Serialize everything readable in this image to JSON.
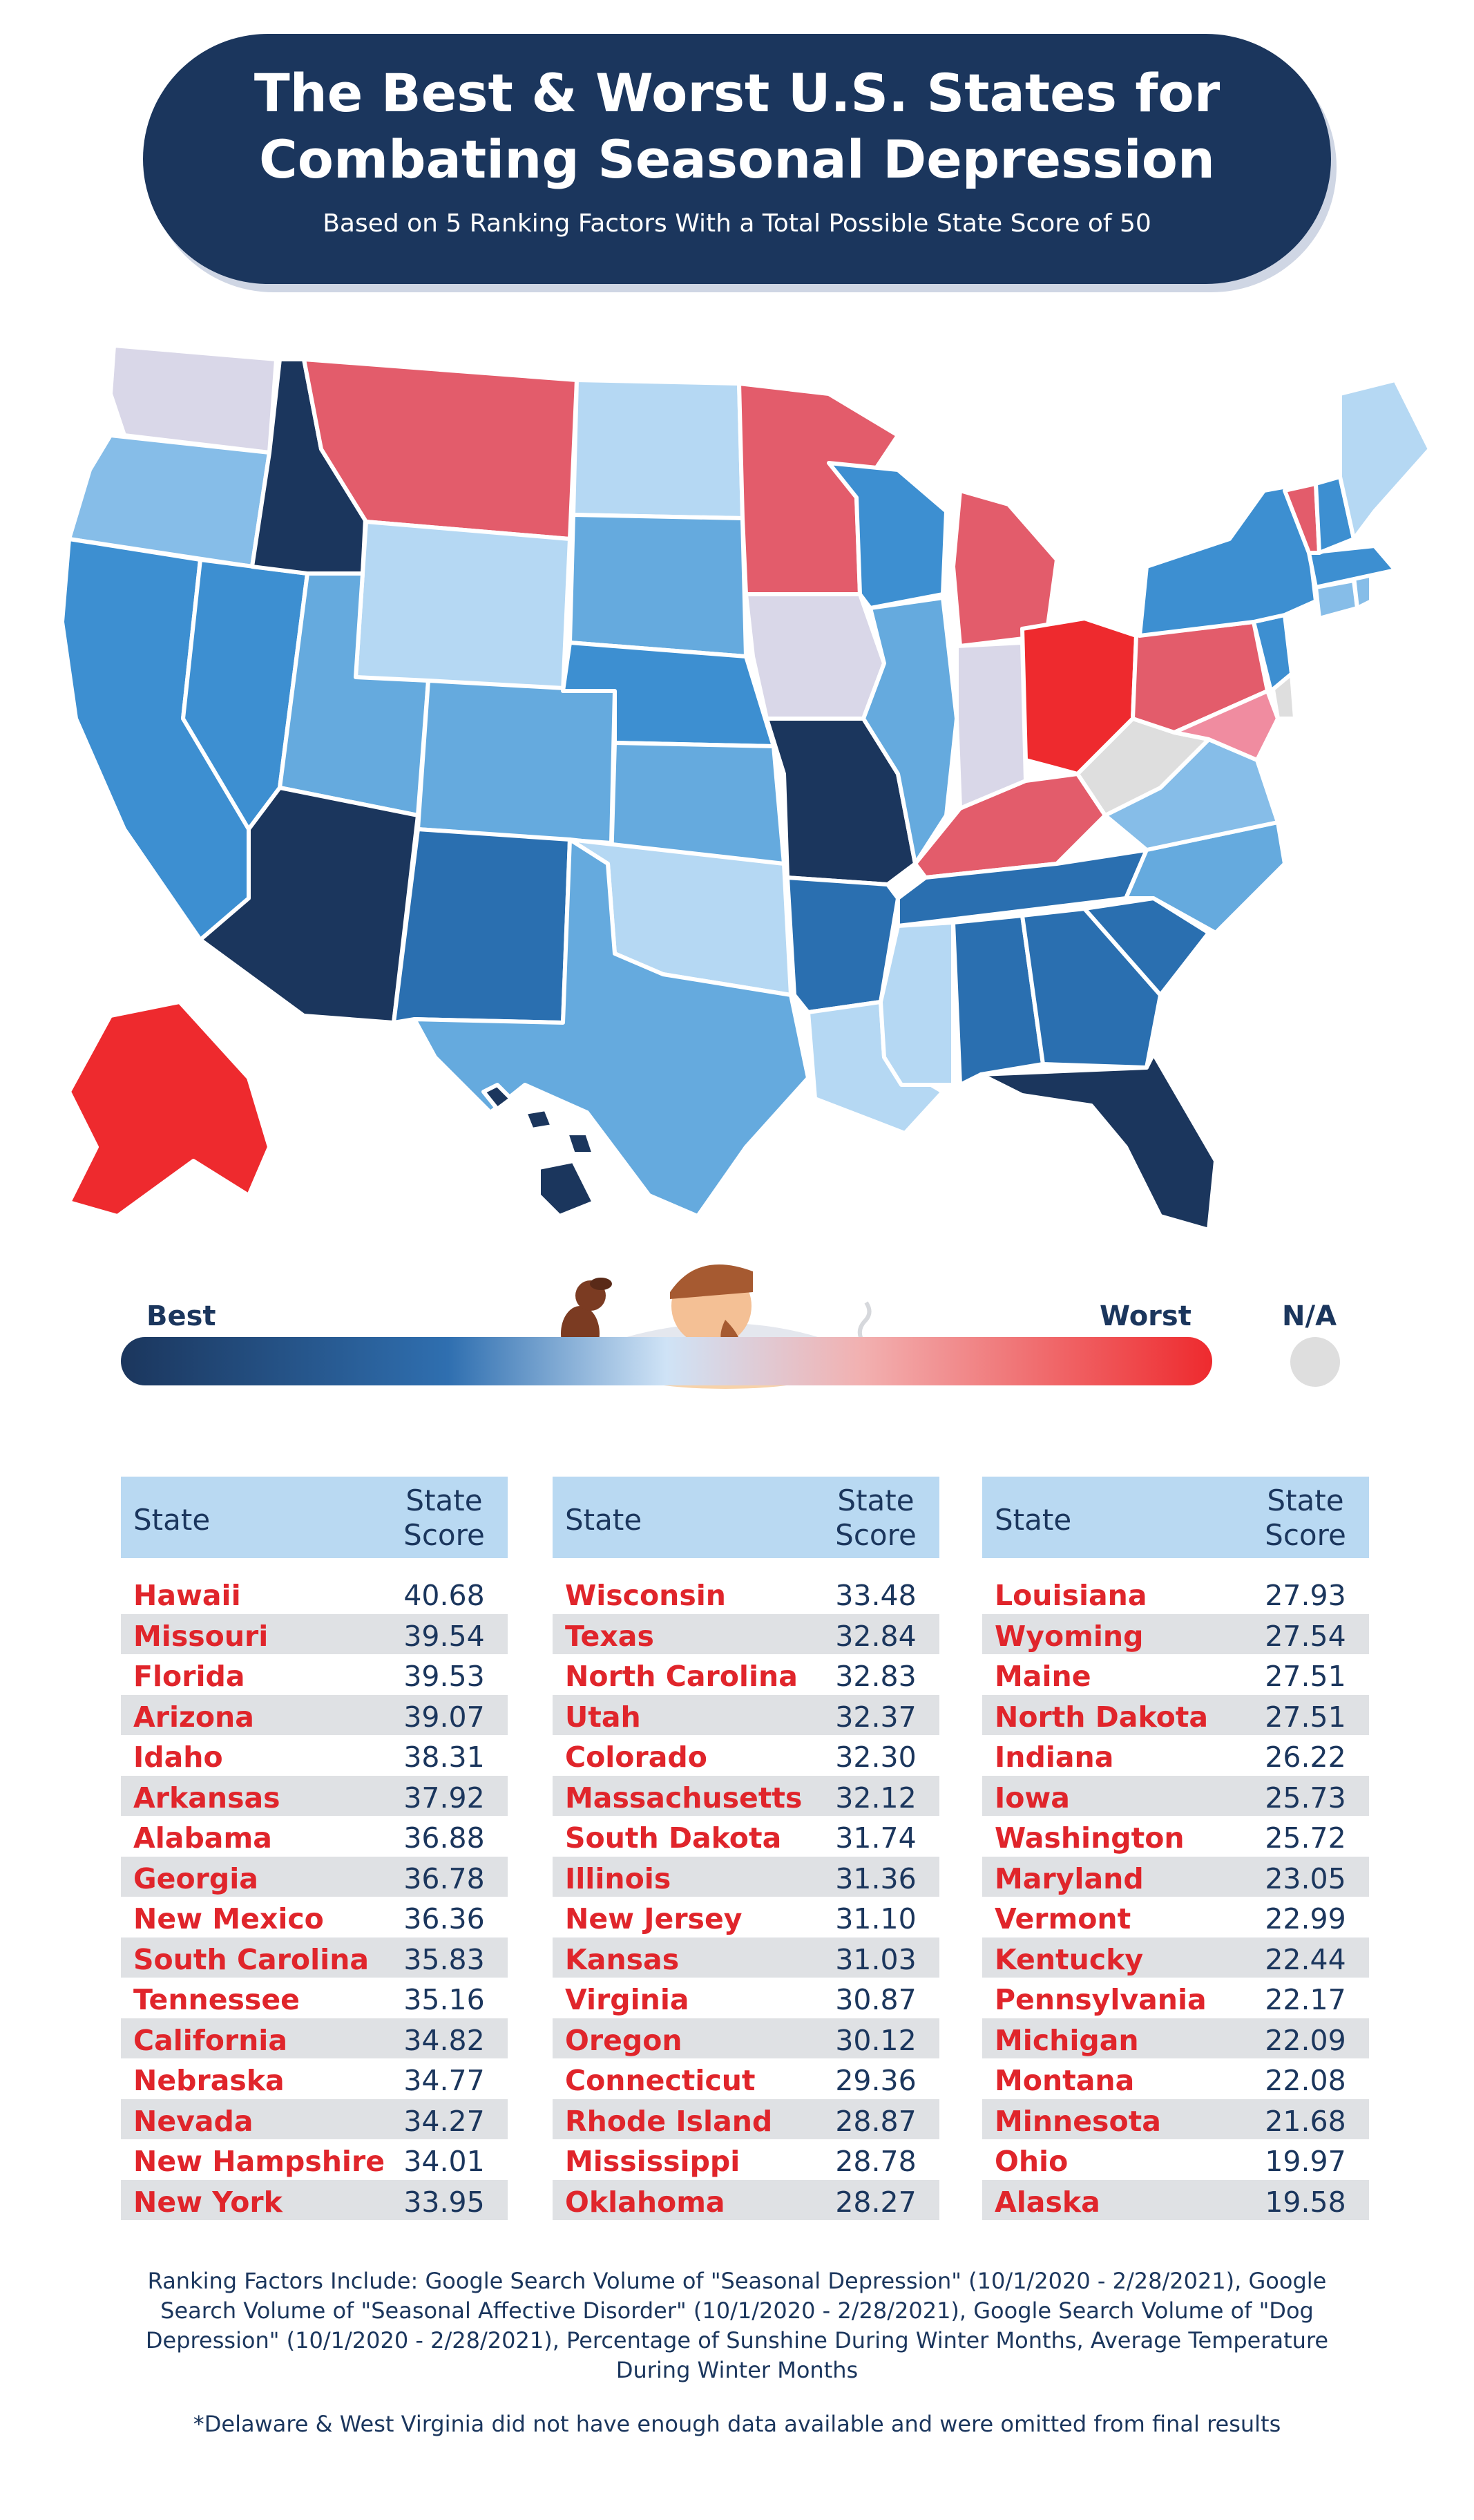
{
  "title": {
    "line1": "The Best & Worst U.S. States for",
    "line2": "Combating Seasonal Depression",
    "subtitle": "Based on 5 Ranking Factors With a Total Possible State Score of 50"
  },
  "colors": {
    "navy": "#1b365d",
    "blue_dark": "#2a6fb0",
    "blue_mid": "#3d8fd1",
    "blue_light": "#65aade",
    "blue_pale": "#86bde8",
    "blue_faint": "#b5d8f3",
    "lavender": "#d9d7e8",
    "red_light": "#e35c6b",
    "red": "#ee2a2e",
    "pink": "#f08ca0",
    "gray_na": "#dedede"
  },
  "legend": {
    "best_label": "Best",
    "worst_label": "Worst",
    "na_label": "N/A"
  },
  "tables": [
    {
      "header_state": "State",
      "header_score_1": "State",
      "header_score_2": "Score",
      "rows": [
        {
          "state": "Hawaii",
          "score": "40.68"
        },
        {
          "state": "Missouri",
          "score": "39.54"
        },
        {
          "state": "Florida",
          "score": "39.53"
        },
        {
          "state": "Arizona",
          "score": "39.07"
        },
        {
          "state": "Idaho",
          "score": "38.31"
        },
        {
          "state": "Arkansas",
          "score": "37.92"
        },
        {
          "state": "Alabama",
          "score": "36.88"
        },
        {
          "state": "Georgia",
          "score": "36.78"
        },
        {
          "state": "New Mexico",
          "score": "36.36"
        },
        {
          "state": "South Carolina",
          "score": "35.83"
        },
        {
          "state": "Tennessee",
          "score": "35.16"
        },
        {
          "state": "California",
          "score": "34.82"
        },
        {
          "state": "Nebraska",
          "score": "34.77"
        },
        {
          "state": "Nevada",
          "score": "34.27"
        },
        {
          "state": "New Hampshire",
          "score": "34.01"
        },
        {
          "state": "New York",
          "score": "33.95"
        }
      ]
    },
    {
      "header_state": "State",
      "header_score_1": "State",
      "header_score_2": "Score",
      "rows": [
        {
          "state": "Wisconsin",
          "score": "33.48"
        },
        {
          "state": "Texas",
          "score": "32.84"
        },
        {
          "state": "North Carolina",
          "score": "32.83"
        },
        {
          "state": "Utah",
          "score": "32.37"
        },
        {
          "state": "Colorado",
          "score": "32.30"
        },
        {
          "state": "Massachusetts",
          "score": "32.12"
        },
        {
          "state": "South Dakota",
          "score": "31.74"
        },
        {
          "state": "Illinois",
          "score": "31.36"
        },
        {
          "state": "New Jersey",
          "score": "31.10"
        },
        {
          "state": "Kansas",
          "score": "31.03"
        },
        {
          "state": "Virginia",
          "score": "30.87"
        },
        {
          "state": "Oregon",
          "score": "30.12"
        },
        {
          "state": "Connecticut",
          "score": "29.36"
        },
        {
          "state": "Rhode Island",
          "score": "28.87"
        },
        {
          "state": "Mississippi",
          "score": "28.78"
        },
        {
          "state": "Oklahoma",
          "score": "28.27"
        }
      ]
    },
    {
      "header_state": "State",
      "header_score_1": "State",
      "header_score_2": "Score",
      "rows": [
        {
          "state": "Louisiana",
          "score": "27.93"
        },
        {
          "state": "Wyoming",
          "score": "27.54"
        },
        {
          "state": "Maine",
          "score": "27.51"
        },
        {
          "state": "North Dakota",
          "score": "27.51"
        },
        {
          "state": "Indiana",
          "score": "26.22"
        },
        {
          "state": "Iowa",
          "score": "25.73"
        },
        {
          "state": "Washington",
          "score": "25.72"
        },
        {
          "state": "Maryland",
          "score": "23.05"
        },
        {
          "state": "Vermont",
          "score": "22.99"
        },
        {
          "state": "Kentucky",
          "score": "22.44"
        },
        {
          "state": "Pennsylvania",
          "score": "22.17"
        },
        {
          "state": "Michigan",
          "score": "22.09"
        },
        {
          "state": "Montana",
          "score": "22.08"
        },
        {
          "state": "Minnesota",
          "score": "21.68"
        },
        {
          "state": "Ohio",
          "score": "19.97"
        },
        {
          "state": "Alaska",
          "score": "19.58"
        }
      ]
    }
  ],
  "factors": "Ranking Factors Include: Google Search Volume of \"Seasonal Depression\" (10/1/2020 - 2/28/2021), Google Search Volume of \"Seasonal Affective Disorder\" (10/1/2020 - 2/28/2021), Google Search Volume of \"Dog Depression\" (10/1/2020 - 2/28/2021), Percentage of Sunshine During Winter Months, Average Temperature During Winter Months",
  "footnote": "*Delaware & West Virginia did not have enough data available and were omitted from final results",
  "map_states": [
    {
      "id": "WA",
      "fill": "lavender"
    },
    {
      "id": "OR",
      "fill": "blue_pale"
    },
    {
      "id": "CA",
      "fill": "blue_mid"
    },
    {
      "id": "NV",
      "fill": "blue_mid"
    },
    {
      "id": "ID",
      "fill": "navy"
    },
    {
      "id": "MT",
      "fill": "red_light"
    },
    {
      "id": "WY",
      "fill": "blue_faint"
    },
    {
      "id": "UT",
      "fill": "blue_light"
    },
    {
      "id": "AZ",
      "fill": "navy"
    },
    {
      "id": "CO",
      "fill": "blue_light"
    },
    {
      "id": "NM",
      "fill": "blue_dark"
    },
    {
      "id": "ND",
      "fill": "blue_faint"
    },
    {
      "id": "SD",
      "fill": "blue_light"
    },
    {
      "id": "NE",
      "fill": "blue_mid"
    },
    {
      "id": "KS",
      "fill": "blue_light"
    },
    {
      "id": "OK",
      "fill": "blue_faint"
    },
    {
      "id": "TX",
      "fill": "blue_light"
    },
    {
      "id": "MN",
      "fill": "red_light"
    },
    {
      "id": "IA",
      "fill": "lavender"
    },
    {
      "id": "MO",
      "fill": "navy"
    },
    {
      "id": "AR",
      "fill": "blue_dark"
    },
    {
      "id": "LA",
      "fill": "blue_faint"
    },
    {
      "id": "WI",
      "fill": "blue_mid"
    },
    {
      "id": "IL",
      "fill": "blue_light"
    },
    {
      "id": "MI",
      "fill": "red_light"
    },
    {
      "id": "IN",
      "fill": "lavender"
    },
    {
      "id": "OH",
      "fill": "red"
    },
    {
      "id": "KY",
      "fill": "red_light"
    },
    {
      "id": "TN",
      "fill": "blue_dark"
    },
    {
      "id": "MS",
      "fill": "blue_faint"
    },
    {
      "id": "AL",
      "fill": "blue_dark"
    },
    {
      "id": "GA",
      "fill": "blue_dark"
    },
    {
      "id": "FL",
      "fill": "navy"
    },
    {
      "id": "SC",
      "fill": "blue_dark"
    },
    {
      "id": "NC",
      "fill": "blue_light"
    },
    {
      "id": "VA",
      "fill": "blue_pale"
    },
    {
      "id": "WV",
      "fill": "gray_na"
    },
    {
      "id": "PA",
      "fill": "red_light"
    },
    {
      "id": "NY",
      "fill": "blue_mid"
    },
    {
      "id": "MD",
      "fill": "pink"
    },
    {
      "id": "DE",
      "fill": "gray_na"
    },
    {
      "id": "NJ",
      "fill": "blue_mid"
    },
    {
      "id": "CT",
      "fill": "blue_pale"
    },
    {
      "id": "RI",
      "fill": "blue_pale"
    },
    {
      "id": "MA",
      "fill": "blue_mid"
    },
    {
      "id": "VT",
      "fill": "red_light"
    },
    {
      "id": "NH",
      "fill": "blue_mid"
    },
    {
      "id": "ME",
      "fill": "blue_faint"
    },
    {
      "id": "AK",
      "fill": "red"
    },
    {
      "id": "HI",
      "fill": "navy"
    }
  ]
}
